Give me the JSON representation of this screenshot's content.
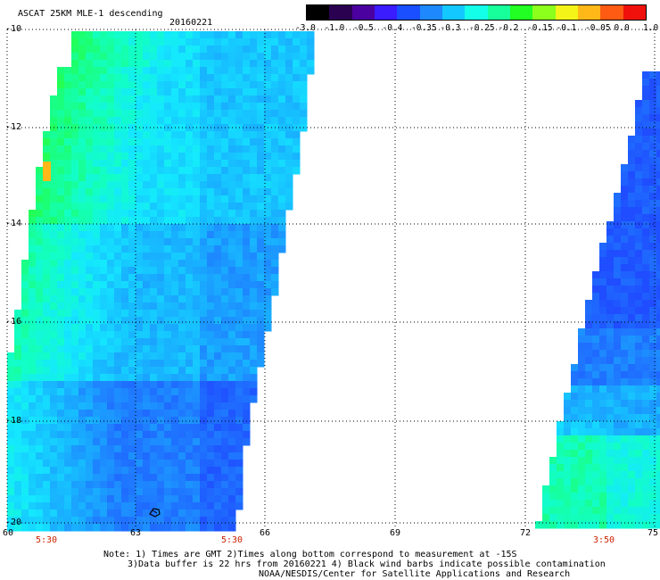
{
  "header": {
    "title": "ASCAT 25KM MLE-1 descending",
    "date": "20160221"
  },
  "colorbar": {
    "labels": [
      "-3.0",
      "-1.0",
      "-0.5",
      "-0.4",
      "-0.35",
      "-0.3",
      "-0.25",
      "-0.2",
      "-0.15",
      "-0.1",
      "-0.05",
      "0.0",
      "1.0"
    ],
    "colors": [
      "#000000",
      "#2a0050",
      "#4b00a0",
      "#3a1cff",
      "#1a4fff",
      "#1e88ff",
      "#12c8ff",
      "#14ffe8",
      "#16ff9a",
      "#22ff22",
      "#8cff1c",
      "#f4f418",
      "#ffb818",
      "#ff5b12",
      "#f0100c"
    ]
  },
  "map": {
    "lat_labels": [
      "-10",
      "-12",
      "-14",
      "-16",
      "-18",
      "-20"
    ],
    "lon_labels": [
      "60",
      "63",
      "66",
      "69",
      "72",
      "75"
    ],
    "times": [
      "5:30",
      "5:30",
      "3:50"
    ]
  },
  "notes": {
    "line1": "Note: 1) Times are GMT 2)Times along bottom correspond to measurement at -15S",
    "line2": "3)Data buffer is 22 hrs from 20160221 4) Black wind barbs indicate possible contamination",
    "line3": "NOAA/NESDIS/Center for Satellite Applications and Research"
  }
}
